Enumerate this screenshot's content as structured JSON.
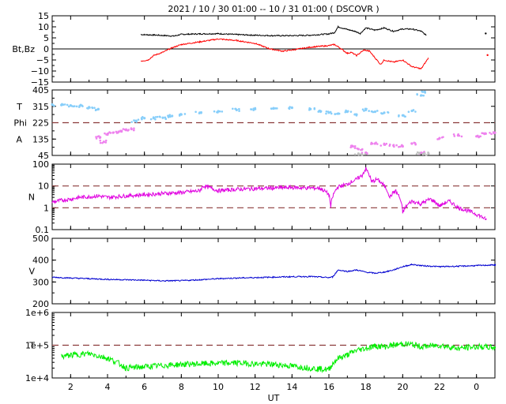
{
  "title": "2021 / 10 / 30   01:00 -- 10 / 31   01:00 ( DSCOVR )",
  "xlabel": "UT",
  "x_ticks": [
    {
      "hour": 2,
      "label": "2"
    },
    {
      "hour": 4,
      "label": "4"
    },
    {
      "hour": 6,
      "label": "6"
    },
    {
      "hour": 8,
      "label": "8"
    },
    {
      "hour": 10,
      "label": "10"
    },
    {
      "hour": 12,
      "label": "12"
    },
    {
      "hour": 14,
      "label": "14"
    },
    {
      "hour": 16,
      "label": "16"
    },
    {
      "hour": 18,
      "label": "18"
    },
    {
      "hour": 20,
      "label": "20"
    },
    {
      "hour": 22,
      "label": "22"
    },
    {
      "hour": 24,
      "label": "0"
    }
  ],
  "xlim_hours": [
    1,
    25
  ],
  "colors": {
    "bt": "#000000",
    "bz": "#ff0000",
    "theta": "#87cefa",
    "phi": "#ee82ee",
    "phi_gap": "#c0c0c0",
    "density": "#e000e0",
    "speed": "#0000d0",
    "temperature": "#00ee00",
    "reference": "#8b3a3a"
  },
  "chart_data": [
    {
      "type": "line",
      "panel": "magnetic-field",
      "ylabel": "Bt,Bz",
      "ylim": [
        -15,
        15
      ],
      "y_ticks": [
        "15",
        "10",
        "5",
        "0",
        "−5",
        "−10",
        "−15"
      ],
      "y_tick_values": [
        15,
        10,
        5,
        0,
        -5,
        -10,
        -15
      ],
      "zero_line": 0,
      "series": [
        {
          "key": "bt",
          "x": [
            5.8,
            6.5,
            7.2,
            7.6,
            8.0,
            9.0,
            10.0,
            11.0,
            12.0,
            13.0,
            14.0,
            15.0,
            16.0,
            16.3,
            16.5,
            17.0,
            17.4,
            17.7,
            18.0,
            18.5,
            19.0,
            19.5,
            20.0,
            20.5,
            21.0,
            21.3,
            24.5
          ],
          "y": [
            6.5,
            6.3,
            6.0,
            5.8,
            6.6,
            6.8,
            6.9,
            6.5,
            6.2,
            6.0,
            6.0,
            6.2,
            6.8,
            7.4,
            10.0,
            8.8,
            8.0,
            7.0,
            9.5,
            8.5,
            9.5,
            8.0,
            9.0,
            9.0,
            8.0,
            6.0,
            7.0
          ]
        },
        {
          "key": "bz",
          "x": [
            5.8,
            6.2,
            6.5,
            7.0,
            7.5,
            8.0,
            9.0,
            10.0,
            11.0,
            12.0,
            12.8,
            13.5,
            14.0,
            15.0,
            16.0,
            16.3,
            16.5,
            17.0,
            17.2,
            17.5,
            17.9,
            18.2,
            18.5,
            18.8,
            19.0,
            19.5,
            20.0,
            20.5,
            21.0,
            21.4,
            24.6
          ],
          "y": [
            -5.5,
            -5.0,
            -3.0,
            -1.5,
            0.5,
            2.0,
            3.2,
            4.5,
            3.8,
            2.5,
            0.0,
            -1.0,
            -0.5,
            0.8,
            1.5,
            2.0,
            1.0,
            -2.0,
            -1.5,
            -3.0,
            -0.5,
            -1.0,
            -4.0,
            -7.0,
            -5.0,
            -6.0,
            -5.0,
            -8.0,
            -9.0,
            -4.0,
            -2.8
          ]
        }
      ]
    },
    {
      "type": "scatter",
      "panel": "direction",
      "ylabel_top": "T",
      "ylabel_mid": "Phi",
      "ylabel_bot": "A",
      "ylim": [
        45,
        405
      ],
      "y_ticks": [
        "405",
        "315",
        "225",
        "135",
        "45"
      ],
      "y_tick_values": [
        405,
        315,
        225,
        135,
        45
      ],
      "reference_line": 225,
      "series": [
        {
          "key": "theta",
          "x": [
            1.0,
            1.5,
            2.0,
            2.5,
            3.0,
            3.5,
            5.5,
            6.0,
            6.5,
            7.0,
            7.5,
            8.0,
            9.0,
            10.0,
            11.0,
            12.0,
            13.0,
            14.0,
            15.0,
            15.5,
            16.0,
            16.5,
            17.0,
            17.5,
            18.0,
            18.5,
            19.0,
            20.0,
            20.5,
            21.0,
            21.2
          ],
          "y": [
            325,
            322,
            320,
            318,
            310,
            300,
            235,
            250,
            250,
            252,
            262,
            270,
            280,
            288,
            295,
            300,
            305,
            307,
            300,
            290,
            280,
            275,
            285,
            270,
            295,
            285,
            280,
            265,
            290,
            375,
            395
          ]
        },
        {
          "key": "phi",
          "x": [
            3.6,
            3.8,
            4.0,
            4.3,
            4.6,
            5.0,
            5.3,
            17.3,
            17.6,
            18.0,
            18.5,
            19.0,
            19.5,
            20.0,
            20.5,
            21.0,
            22.0,
            23.0,
            24.0,
            24.5,
            25.0
          ],
          "y": [
            145,
            120,
            160,
            170,
            175,
            185,
            190,
            95,
            80,
            60,
            110,
            105,
            100,
            95,
            110,
            60,
            140,
            155,
            150,
            165,
            170
          ]
        },
        {
          "key": "phi_gap",
          "x": [
            17.6,
            17.8,
            20.9,
            21.1,
            21.4
          ],
          "y": [
            55,
            50,
            58,
            52,
            55
          ]
        }
      ]
    },
    {
      "type": "line",
      "panel": "density",
      "ylabel": "N",
      "yscale": "log",
      "ylim": [
        0.1,
        100
      ],
      "y_ticks": [
        "100",
        "10",
        "1",
        "0.1"
      ],
      "y_tick_values": [
        100,
        10,
        1,
        0.1
      ],
      "reference_lines": [
        10,
        1
      ],
      "series": [
        {
          "key": "density",
          "x": [
            1.0,
            1.5,
            2.0,
            2.5,
            3.0,
            3.5,
            4.0,
            5.0,
            6.0,
            7.0,
            8.0,
            9.0,
            9.2,
            10.0,
            11.0,
            12.0,
            13.0,
            14.0,
            15.0,
            15.5,
            16.0,
            16.1,
            16.5,
            17.0,
            17.5,
            17.8,
            18.0,
            18.3,
            18.6,
            19.0,
            19.3,
            19.6,
            20.0,
            20.5,
            21.0,
            21.5,
            22.0,
            22.5,
            23.0,
            24.0,
            24.5
          ],
          "y": [
            1.8,
            2.2,
            2.5,
            3.0,
            3.2,
            3.5,
            3.0,
            3.5,
            4.0,
            4.5,
            5.0,
            6.0,
            10.0,
            6.0,
            7.0,
            7.5,
            8.0,
            8.5,
            8.0,
            8.0,
            4.0,
            1.0,
            9.0,
            12.0,
            20.0,
            30.0,
            60.0,
            15.0,
            20.0,
            10.0,
            3.0,
            6.0,
            0.6,
            2.0,
            1.5,
            2.5,
            1.2,
            2.0,
            1.0,
            0.5,
            0.3
          ]
        }
      ]
    },
    {
      "type": "line",
      "panel": "speed",
      "ylabel": "V",
      "ylim": [
        200,
        500
      ],
      "y_ticks": [
        "500",
        "400",
        "300",
        "200"
      ],
      "y_tick_values": [
        500,
        400,
        300,
        200
      ],
      "series": [
        {
          "key": "speed",
          "x": [
            1.0,
            2.0,
            3.0,
            4.0,
            5.0,
            6.0,
            7.0,
            8.0,
            9.0,
            10.0,
            11.0,
            12.0,
            13.0,
            14.0,
            15.0,
            16.0,
            16.2,
            16.5,
            17.0,
            17.5,
            18.0,
            18.5,
            19.0,
            19.5,
            20.0,
            20.5,
            21.0,
            22.0,
            23.0,
            24.0,
            25.0
          ],
          "y": [
            322,
            318,
            315,
            312,
            310,
            308,
            305,
            306,
            310,
            315,
            318,
            320,
            322,
            324,
            325,
            320,
            323,
            355,
            348,
            355,
            345,
            340,
            345,
            355,
            370,
            380,
            375,
            370,
            372,
            375,
            378
          ]
        }
      ]
    },
    {
      "type": "line",
      "panel": "temperature",
      "ylabel": "T",
      "yscale": "log",
      "ylim": [
        10000,
        1000000
      ],
      "y_ticks": [
        "1e+6",
        "1e+5",
        "1e+4"
      ],
      "y_tick_values": [
        1000000,
        100000,
        10000
      ],
      "reference_line": 100000,
      "series": [
        {
          "key": "temperature",
          "x": [
            1.5,
            2.0,
            3.0,
            4.0,
            5.0,
            6.0,
            7.0,
            8.0,
            9.0,
            10.0,
            11.0,
            12.0,
            13.0,
            14.0,
            15.0,
            16.0,
            16.5,
            17.0,
            17.5,
            18.0,
            18.5,
            19.0,
            19.5,
            20.0,
            20.5,
            21.0,
            21.5,
            22.0,
            23.0,
            24.0,
            25.0
          ],
          "y": [
            45000,
            50000,
            55000,
            40000,
            20000,
            22000,
            24000,
            26000,
            27000,
            28000,
            29000,
            27000,
            26000,
            23000,
            20000,
            18000,
            40000,
            50000,
            70000,
            80000,
            95000,
            90000,
            100000,
            110000,
            105000,
            90000,
            95000,
            100000,
            80000,
            90000,
            85000
          ]
        }
      ]
    }
  ]
}
